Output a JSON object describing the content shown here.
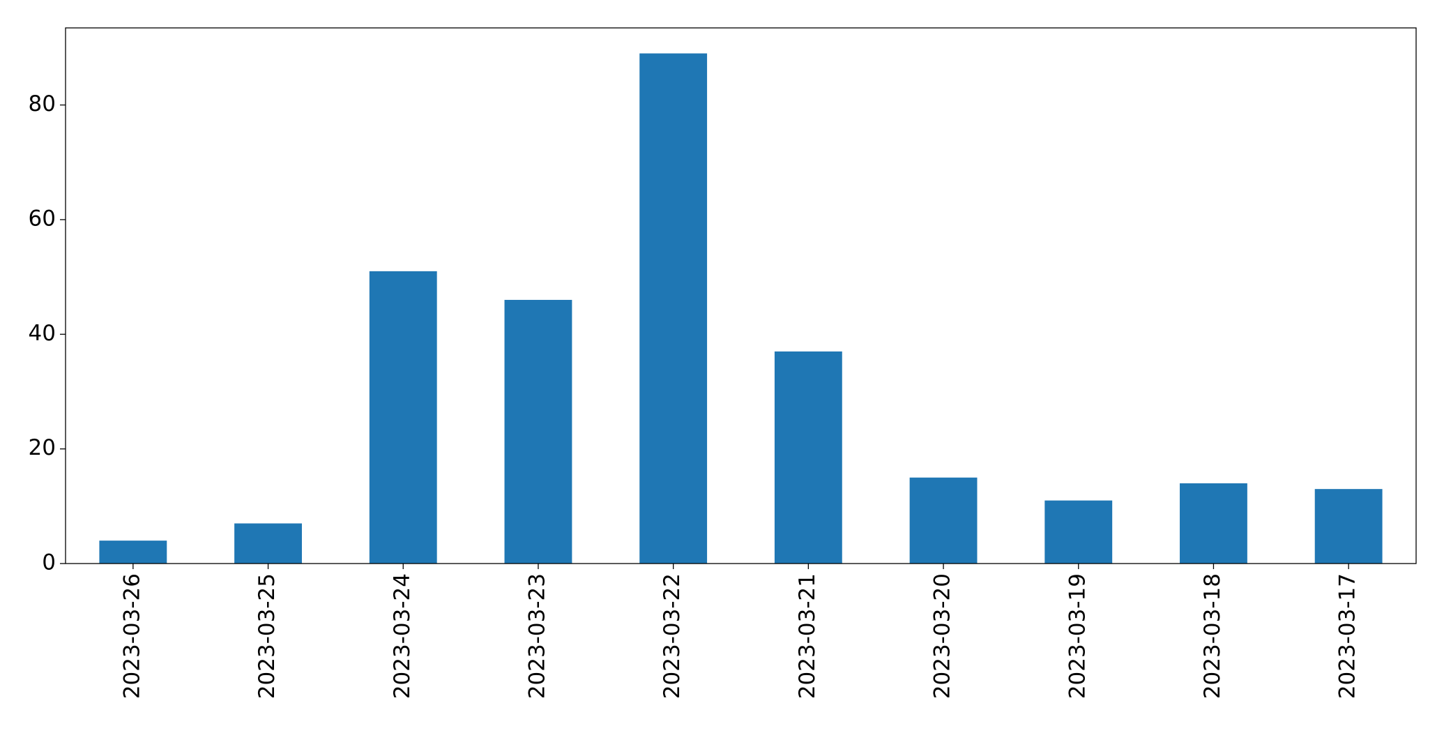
{
  "chart_data": {
    "type": "bar",
    "categories": [
      "2023-03-26",
      "2023-03-25",
      "2023-03-24",
      "2023-03-23",
      "2023-03-22",
      "2023-03-21",
      "2023-03-20",
      "2023-03-19",
      "2023-03-18",
      "2023-03-17"
    ],
    "values": [
      4,
      7,
      51,
      46,
      89,
      37,
      15,
      11,
      14,
      13
    ],
    "color": "#1f77b4",
    "ylim": [
      0,
      93.45
    ],
    "yticks": [
      0,
      20,
      40,
      60,
      80
    ],
    "grid": false
  }
}
